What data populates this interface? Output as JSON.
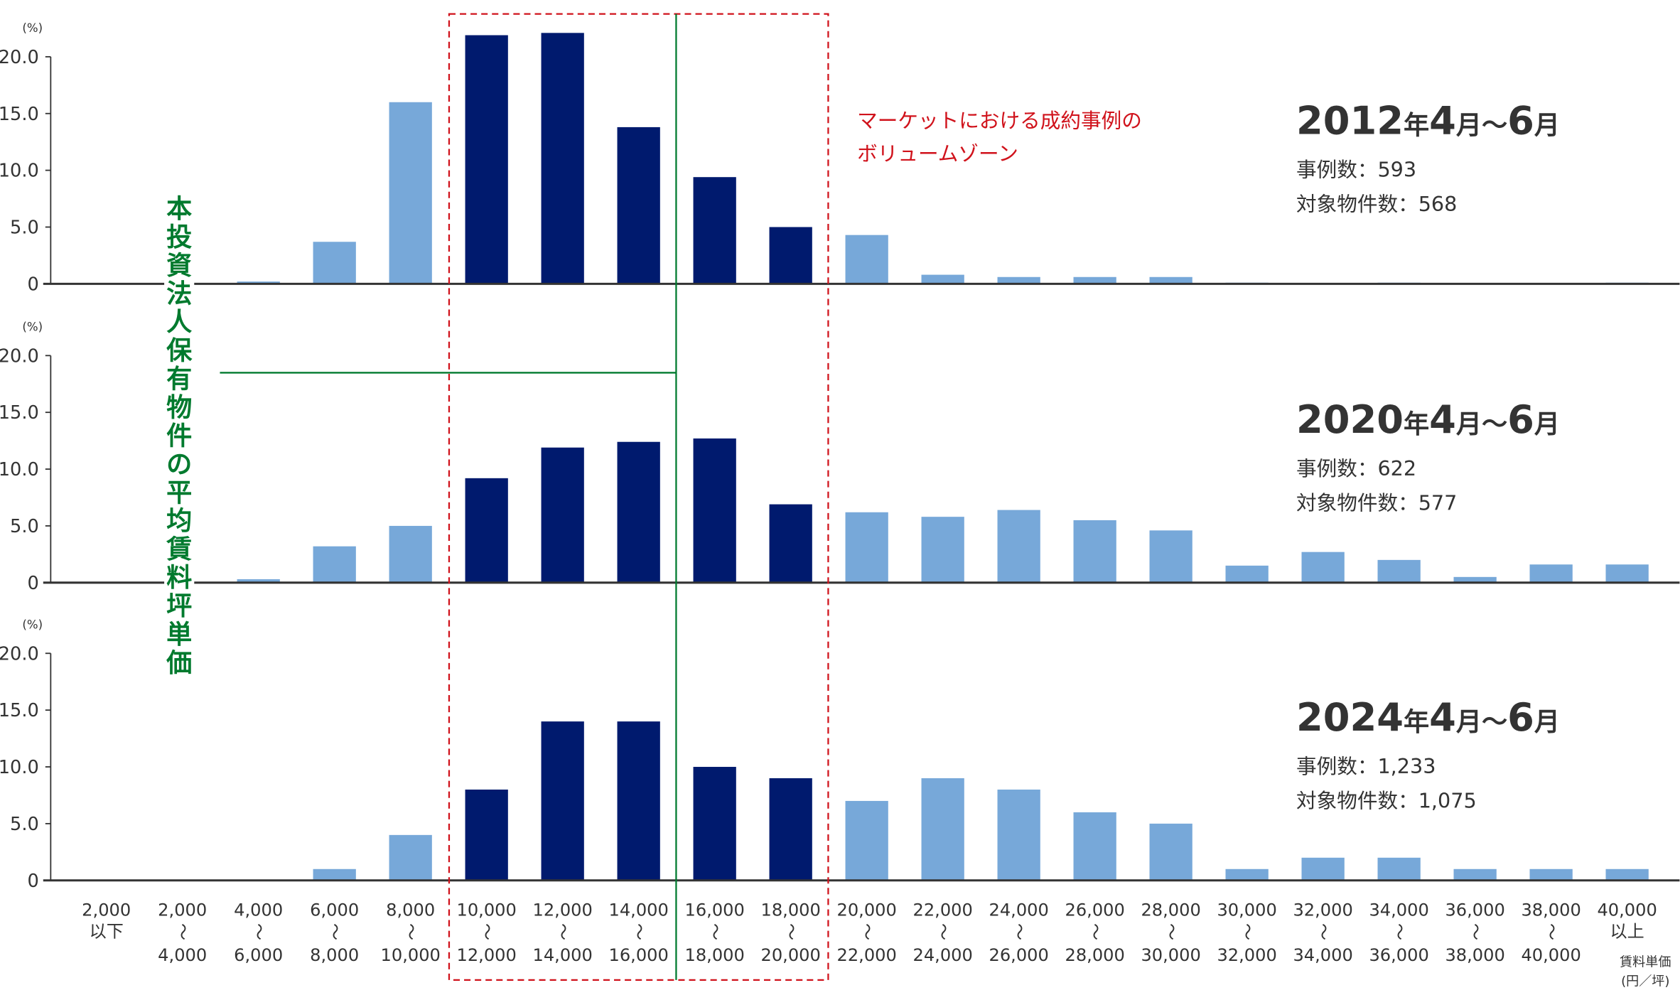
{
  "chart_data": {
    "type": "bar",
    "unit_label": "(%)",
    "yticks": [
      "20.0",
      "15.0",
      "10.0",
      "5.0",
      "0"
    ],
    "ylim": [
      0,
      20
    ],
    "categories": [
      [
        "2,000",
        "以下",
        ""
      ],
      [
        "2,000",
        "〜",
        "4,000"
      ],
      [
        "4,000",
        "〜",
        "6,000"
      ],
      [
        "6,000",
        "〜",
        "8,000"
      ],
      [
        "8,000",
        "〜",
        "10,000"
      ],
      [
        "10,000",
        "〜",
        "12,000"
      ],
      [
        "12,000",
        "〜",
        "14,000"
      ],
      [
        "14,000",
        "〜",
        "16,000"
      ],
      [
        "16,000",
        "〜",
        "18,000"
      ],
      [
        "18,000",
        "〜",
        "20,000"
      ],
      [
        "20,000",
        "〜",
        "22,000"
      ],
      [
        "22,000",
        "〜",
        "24,000"
      ],
      [
        "24,000",
        "〜",
        "26,000"
      ],
      [
        "26,000",
        "〜",
        "28,000"
      ],
      [
        "28,000",
        "〜",
        "30,000"
      ],
      [
        "30,000",
        "〜",
        "32,000"
      ],
      [
        "32,000",
        "〜",
        "34,000"
      ],
      [
        "34,000",
        "〜",
        "36,000"
      ],
      [
        "36,000",
        "〜",
        "38,000"
      ],
      [
        "38,000",
        "〜",
        "40,000"
      ],
      [
        "40,000",
        "以上",
        ""
      ]
    ],
    "xlabel": [
      "賃料単価",
      "(円／坪)"
    ],
    "highlight_categories": [
      5,
      6,
      7,
      8,
      9
    ],
    "colors": {
      "highlight": "#001a6e",
      "normal": "#77a8d9",
      "zone": "#d0121b",
      "average": "#007a2e"
    },
    "panels": [
      {
        "year": "2012",
        "year_suffix": "年",
        "m1": "4",
        "m1_suffix": "月",
        "sep": "～",
        "m2": "6",
        "m2_suffix": "月",
        "cases": "事例数：593",
        "properties": "対象物件数：568",
        "values": [
          0,
          0,
          0.2,
          3.7,
          16.0,
          21.9,
          22.1,
          13.8,
          9.4,
          5.0,
          4.3,
          0.8,
          0.6,
          0.6,
          0.6,
          0.1,
          0,
          0.1,
          0,
          0,
          0.1
        ]
      },
      {
        "year": "2020",
        "year_suffix": "年",
        "m1": "4",
        "m1_suffix": "月",
        "sep": "～",
        "m2": "6",
        "m2_suffix": "月",
        "cases": "事例数：622",
        "properties": "対象物件数：577",
        "values": [
          0,
          0,
          0.3,
          3.2,
          5.0,
          9.2,
          11.9,
          12.4,
          12.7,
          6.9,
          6.2,
          5.8,
          6.4,
          5.5,
          4.6,
          1.5,
          2.7,
          2.0,
          0.5,
          1.6,
          1.6
        ]
      },
      {
        "year": "2024",
        "year_suffix": "年",
        "m1": "4",
        "m1_suffix": "月",
        "sep": "～",
        "m2": "6",
        "m2_suffix": "月",
        "cases": "事例数：1,233",
        "properties": "対象物件数：1,075",
        "values": [
          0,
          0,
          0,
          1.0,
          4.0,
          8.0,
          14.0,
          14.0,
          10.0,
          9.0,
          7.0,
          9.0,
          8.0,
          6.0,
          5.0,
          1.0,
          2.0,
          2.0,
          1.0,
          1.0,
          1.0
        ]
      }
    ],
    "annotations": {
      "zone_label": [
        "マーケットにおける成約事例の",
        "ボリュームゾーン"
      ],
      "average_label": "本投資法人保有物件の平均賃料坪単価"
    }
  }
}
